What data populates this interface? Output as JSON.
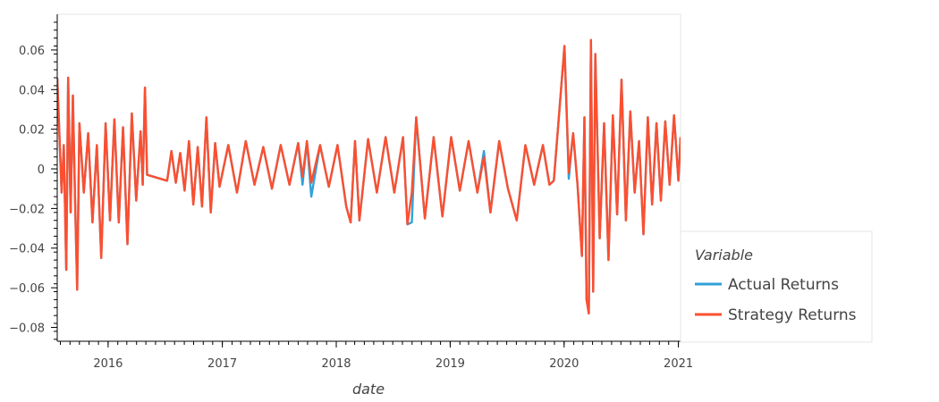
{
  "chart_data": {
    "type": "line",
    "title": "",
    "xlabel": "date",
    "ylabel": "",
    "x_ticks": [
      "2016",
      "2017",
      "2018",
      "2019",
      "2020",
      "2021"
    ],
    "x_tick_years": [
      2016,
      2017,
      2018,
      2019,
      2020,
      2021
    ],
    "xlim": [
      "2015-07-22",
      "2021-01-08"
    ],
    "y_ticks": [
      "0.06",
      "0.04",
      "0.02",
      "0",
      "−0.02",
      "−0.04",
      "−0.06",
      "−0.08"
    ],
    "y_tick_values": [
      0.06,
      0.04,
      0.02,
      0,
      -0.02,
      -0.04,
      -0.06,
      -0.08
    ],
    "ylim": [
      -0.087,
      0.078
    ],
    "grid": false,
    "legend": {
      "title": "Variable",
      "placement": "right"
    },
    "series": [
      {
        "name": "Actual Returns",
        "color": "#30a2da",
        "points": [
          [
            "2015-07-22",
            0.046
          ],
          [
            "2015-08-05",
            -0.012
          ],
          [
            "2015-08-12",
            0.012
          ],
          [
            "2015-08-20",
            -0.051
          ],
          [
            "2015-08-26",
            0.046
          ],
          [
            "2015-09-03",
            -0.022
          ],
          [
            "2015-09-10",
            0.037
          ],
          [
            "2015-09-17",
            -0.015
          ],
          [
            "2015-09-24",
            -0.061
          ],
          [
            "2015-10-01",
            0.023
          ],
          [
            "2015-10-15",
            -0.012
          ],
          [
            "2015-10-29",
            0.018
          ],
          [
            "2015-11-12",
            -0.027
          ],
          [
            "2015-11-26",
            0.012
          ],
          [
            "2015-12-10",
            -0.045
          ],
          [
            "2015-12-24",
            0.023
          ],
          [
            "2016-01-07",
            -0.026
          ],
          [
            "2016-01-21",
            0.025
          ],
          [
            "2016-02-04",
            -0.027
          ],
          [
            "2016-02-18",
            0.021
          ],
          [
            "2016-03-03",
            -0.038
          ],
          [
            "2016-03-17",
            0.028
          ],
          [
            "2016-03-31",
            -0.016
          ],
          [
            "2016-04-14",
            0.019
          ],
          [
            "2016-04-21",
            -0.008
          ],
          [
            "2016-04-28",
            0.041
          ],
          [
            "2016-05-05",
            -0.003
          ],
          [
            "2016-07-08",
            -0.006
          ],
          [
            "2016-07-22",
            0.009
          ],
          [
            "2016-08-05",
            -0.007
          ],
          [
            "2016-08-19",
            0.008
          ],
          [
            "2016-09-02",
            -0.011
          ],
          [
            "2016-09-16",
            0.014
          ],
          [
            "2016-09-30",
            -0.018
          ],
          [
            "2016-10-14",
            0.011
          ],
          [
            "2016-10-28",
            -0.019
          ],
          [
            "2016-11-11",
            0.026
          ],
          [
            "2016-11-25",
            -0.022
          ],
          [
            "2016-12-09",
            0.013
          ],
          [
            "2016-12-23",
            -0.009
          ],
          [
            "2017-01-20",
            0.012
          ],
          [
            "2017-02-17",
            -0.012
          ],
          [
            "2017-03-17",
            0.014
          ],
          [
            "2017-04-14",
            -0.008
          ],
          [
            "2017-05-12",
            0.011
          ],
          [
            "2017-06-09",
            -0.01
          ],
          [
            "2017-07-07",
            0.012
          ],
          [
            "2017-08-04",
            -0.008
          ],
          [
            "2017-09-01",
            0.013
          ],
          [
            "2017-09-15",
            -0.008
          ],
          [
            "2017-09-29",
            0.014
          ],
          [
            "2017-10-13",
            -0.014
          ],
          [
            "2017-11-10",
            0.012
          ],
          [
            "2017-12-08",
            -0.009
          ],
          [
            "2018-01-05",
            0.012
          ],
          [
            "2018-02-02",
            -0.019
          ],
          [
            "2018-02-16",
            -0.027
          ],
          [
            "2018-03-02",
            0.014
          ],
          [
            "2018-03-16",
            -0.026
          ],
          [
            "2018-04-13",
            0.015
          ],
          [
            "2018-05-11",
            -0.012
          ],
          [
            "2018-06-08",
            0.016
          ],
          [
            "2018-07-06",
            -0.012
          ],
          [
            "2018-08-03",
            0.016
          ],
          [
            "2018-08-17",
            -0.028
          ],
          [
            "2018-08-31",
            -0.027
          ],
          [
            "2018-09-14",
            0.026
          ],
          [
            "2018-10-12",
            -0.025
          ],
          [
            "2018-11-09",
            0.016
          ],
          [
            "2018-12-07",
            -0.024
          ],
          [
            "2019-01-04",
            0.016
          ],
          [
            "2019-02-01",
            -0.011
          ],
          [
            "2019-03-01",
            0.014
          ],
          [
            "2019-03-29",
            -0.012
          ],
          [
            "2019-04-19",
            0.009
          ],
          [
            "2019-05-10",
            -0.022
          ],
          [
            "2019-06-07",
            0.014
          ],
          [
            "2019-07-05",
            -0.01
          ],
          [
            "2019-08-02",
            -0.026
          ],
          [
            "2019-08-30",
            0.012
          ],
          [
            "2019-09-27",
            -0.008
          ],
          [
            "2019-10-25",
            0.012
          ],
          [
            "2019-11-15",
            -0.008
          ],
          [
            "2019-11-29",
            -0.006
          ],
          [
            "2020-01-02",
            0.062
          ],
          [
            "2020-01-16",
            -0.005
          ],
          [
            "2020-01-30",
            0.018
          ],
          [
            "2020-02-13",
            -0.008
          ],
          [
            "2020-02-27",
            -0.044
          ],
          [
            "2020-03-06",
            0.026
          ],
          [
            "2020-03-13",
            -0.066
          ],
          [
            "2020-03-20",
            -0.073
          ],
          [
            "2020-03-27",
            0.065
          ],
          [
            "2020-04-03",
            -0.062
          ],
          [
            "2020-04-10",
            0.058
          ],
          [
            "2020-04-24",
            -0.035
          ],
          [
            "2020-05-08",
            0.023
          ],
          [
            "2020-05-22",
            -0.046
          ],
          [
            "2020-06-05",
            0.027
          ],
          [
            "2020-06-19",
            -0.023
          ],
          [
            "2020-07-03",
            0.045
          ],
          [
            "2020-07-17",
            -0.026
          ],
          [
            "2020-07-31",
            0.029
          ],
          [
            "2020-08-14",
            -0.012
          ],
          [
            "2020-08-28",
            0.014
          ],
          [
            "2020-09-11",
            -0.033
          ],
          [
            "2020-09-25",
            0.026
          ],
          [
            "2020-10-09",
            -0.018
          ],
          [
            "2020-10-23",
            0.023
          ],
          [
            "2020-11-06",
            -0.016
          ],
          [
            "2020-11-20",
            0.024
          ],
          [
            "2020-12-04",
            -0.008
          ],
          [
            "2020-12-18",
            0.027
          ],
          [
            "2021-01-01",
            -0.006
          ],
          [
            "2021-01-08",
            0.016
          ]
        ]
      },
      {
        "name": "Strategy Returns",
        "color": "#fc4f30",
        "points": [
          [
            "2015-07-22",
            0.046
          ],
          [
            "2015-08-05",
            -0.012
          ],
          [
            "2015-08-12",
            0.012
          ],
          [
            "2015-08-20",
            -0.051
          ],
          [
            "2015-08-26",
            0.046
          ],
          [
            "2015-09-03",
            -0.022
          ],
          [
            "2015-09-10",
            0.037
          ],
          [
            "2015-09-17",
            -0.015
          ],
          [
            "2015-09-24",
            -0.061
          ],
          [
            "2015-10-01",
            0.023
          ],
          [
            "2015-10-15",
            -0.012
          ],
          [
            "2015-10-29",
            0.018
          ],
          [
            "2015-11-12",
            -0.027
          ],
          [
            "2015-11-26",
            0.012
          ],
          [
            "2015-12-10",
            -0.045
          ],
          [
            "2015-12-24",
            0.023
          ],
          [
            "2016-01-07",
            -0.026
          ],
          [
            "2016-01-21",
            0.025
          ],
          [
            "2016-02-04",
            -0.027
          ],
          [
            "2016-02-18",
            0.021
          ],
          [
            "2016-03-03",
            -0.038
          ],
          [
            "2016-03-17",
            0.028
          ],
          [
            "2016-03-31",
            -0.016
          ],
          [
            "2016-04-14",
            0.019
          ],
          [
            "2016-04-21",
            -0.008
          ],
          [
            "2016-04-28",
            0.041
          ],
          [
            "2016-05-05",
            -0.003
          ],
          [
            "2016-07-08",
            -0.006
          ],
          [
            "2016-07-22",
            0.009
          ],
          [
            "2016-08-05",
            -0.007
          ],
          [
            "2016-08-19",
            0.008
          ],
          [
            "2016-09-02",
            -0.011
          ],
          [
            "2016-09-16",
            0.014
          ],
          [
            "2016-09-30",
            -0.018
          ],
          [
            "2016-10-14",
            0.011
          ],
          [
            "2016-10-28",
            -0.019
          ],
          [
            "2016-11-11",
            0.026
          ],
          [
            "2016-11-25",
            -0.022
          ],
          [
            "2016-12-09",
            0.013
          ],
          [
            "2016-12-23",
            -0.009
          ],
          [
            "2017-01-20",
            0.012
          ],
          [
            "2017-02-17",
            -0.012
          ],
          [
            "2017-03-17",
            0.014
          ],
          [
            "2017-04-14",
            -0.008
          ],
          [
            "2017-05-12",
            0.011
          ],
          [
            "2017-06-09",
            -0.01
          ],
          [
            "2017-07-07",
            0.012
          ],
          [
            "2017-08-04",
            -0.008
          ],
          [
            "2017-09-01",
            0.013
          ],
          [
            "2017-09-15",
            -0.004
          ],
          [
            "2017-09-29",
            0.014
          ],
          [
            "2017-10-13",
            -0.007
          ],
          [
            "2017-11-10",
            0.012
          ],
          [
            "2017-12-08",
            -0.009
          ],
          [
            "2018-01-05",
            0.012
          ],
          [
            "2018-02-02",
            -0.019
          ],
          [
            "2018-02-16",
            -0.027
          ],
          [
            "2018-03-02",
            0.014
          ],
          [
            "2018-03-16",
            -0.026
          ],
          [
            "2018-04-13",
            0.015
          ],
          [
            "2018-05-11",
            -0.012
          ],
          [
            "2018-06-08",
            0.016
          ],
          [
            "2018-07-06",
            -0.012
          ],
          [
            "2018-08-03",
            0.016
          ],
          [
            "2018-08-17",
            -0.028
          ],
          [
            "2018-08-31",
            -0.012
          ],
          [
            "2018-09-14",
            0.026
          ],
          [
            "2018-10-12",
            -0.025
          ],
          [
            "2018-11-09",
            0.016
          ],
          [
            "2018-12-07",
            -0.024
          ],
          [
            "2019-01-04",
            0.016
          ],
          [
            "2019-02-01",
            -0.011
          ],
          [
            "2019-03-01",
            0.014
          ],
          [
            "2019-03-29",
            -0.012
          ],
          [
            "2019-04-19",
            0.006
          ],
          [
            "2019-05-10",
            -0.022
          ],
          [
            "2019-06-07",
            0.014
          ],
          [
            "2019-07-05",
            -0.01
          ],
          [
            "2019-08-02",
            -0.026
          ],
          [
            "2019-08-30",
            0.012
          ],
          [
            "2019-09-27",
            -0.008
          ],
          [
            "2019-10-25",
            0.012
          ],
          [
            "2019-11-15",
            -0.008
          ],
          [
            "2019-11-29",
            -0.006
          ],
          [
            "2020-01-02",
            0.062
          ],
          [
            "2020-01-16",
            -0.002
          ],
          [
            "2020-01-30",
            0.018
          ],
          [
            "2020-02-13",
            -0.008
          ],
          [
            "2020-02-27",
            -0.044
          ],
          [
            "2020-03-06",
            0.026
          ],
          [
            "2020-03-13",
            -0.066
          ],
          [
            "2020-03-20",
            -0.073
          ],
          [
            "2020-03-27",
            0.065
          ],
          [
            "2020-04-03",
            -0.062
          ],
          [
            "2020-04-10",
            0.058
          ],
          [
            "2020-04-24",
            -0.035
          ],
          [
            "2020-05-08",
            0.023
          ],
          [
            "2020-05-22",
            -0.046
          ],
          [
            "2020-06-05",
            0.027
          ],
          [
            "2020-06-19",
            -0.023
          ],
          [
            "2020-07-03",
            0.045
          ],
          [
            "2020-07-17",
            -0.026
          ],
          [
            "2020-07-31",
            0.029
          ],
          [
            "2020-08-14",
            -0.012
          ],
          [
            "2020-08-28",
            0.014
          ],
          [
            "2020-09-11",
            -0.033
          ],
          [
            "2020-09-25",
            0.026
          ],
          [
            "2020-10-09",
            -0.018
          ],
          [
            "2020-10-23",
            0.023
          ],
          [
            "2020-11-06",
            -0.016
          ],
          [
            "2020-11-20",
            0.024
          ],
          [
            "2020-12-04",
            -0.008
          ],
          [
            "2020-12-18",
            0.027
          ],
          [
            "2021-01-01",
            -0.006
          ],
          [
            "2021-01-08",
            0.016
          ]
        ]
      }
    ]
  }
}
